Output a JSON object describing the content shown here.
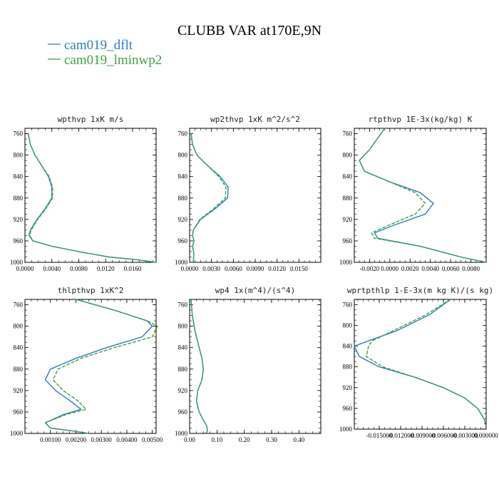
{
  "title": "CLUBB VAR at170E,9N",
  "legend": [
    {
      "name": "cam019_dflt",
      "color": "#2a7fc1",
      "dash": "solid"
    },
    {
      "name": "cam019_lminwp2",
      "color": "#3aa53a",
      "dash": "dashed"
    }
  ],
  "chart_data": [
    {
      "type": "line",
      "title": "wpthvp  1xK m/s",
      "xlim": [
        0,
        0.0195
      ],
      "ylim": [
        750,
        1000
      ],
      "y_inverted": true,
      "xticks": [
        "0.0000",
        "0.0040",
        "0.0080",
        "0.0120",
        "0.0160"
      ],
      "xtick_values": [
        0,
        0.004,
        0.008,
        0.012,
        0.016
      ],
      "yticks": [
        "760",
        "800",
        "840",
        "880",
        "920",
        "960",
        "1000"
      ],
      "ytick_values": [
        760,
        800,
        840,
        880,
        920,
        960,
        1000
      ],
      "series": [
        {
          "name": "cam019_dflt",
          "x": [
            0.0005,
            0.0008,
            0.0015,
            0.0025,
            0.0035,
            0.004,
            0.004,
            0.003,
            0.0018,
            0.0008,
            0.0006,
            0.0012,
            0.004,
            0.008,
            0.0125,
            0.0165,
            0.0195
          ],
          "y": [
            760,
            780,
            800,
            820,
            840,
            860,
            880,
            900,
            920,
            940,
            950,
            960,
            970,
            980,
            990,
            995,
            1000
          ]
        },
        {
          "name": "cam019_lminwp2",
          "x": [
            0.0005,
            0.0008,
            0.0015,
            0.0025,
            0.0036,
            0.0041,
            0.0041,
            0.0031,
            0.0019,
            0.0009,
            0.0007,
            0.0012,
            0.004,
            0.008,
            0.0125,
            0.0165,
            0.0195
          ],
          "y": [
            760,
            780,
            800,
            820,
            840,
            860,
            880,
            900,
            920,
            940,
            950,
            960,
            970,
            980,
            990,
            995,
            1000
          ]
        }
      ]
    },
    {
      "type": "line",
      "title": "wp2thvp  1xK m^2/s^2",
      "xlim": [
        0,
        0.018
      ],
      "ylim": [
        750,
        1000
      ],
      "y_inverted": true,
      "xticks": [
        "0.0000",
        "0.0030",
        "0.0060",
        "0.0090",
        "0.0120",
        "0.0150"
      ],
      "xtick_values": [
        0,
        0.003,
        0.006,
        0.009,
        0.012,
        0.015
      ],
      "yticks": [
        "760",
        "800",
        "840",
        "880",
        "920",
        "960",
        "1000"
      ],
      "ytick_values": [
        760,
        800,
        840,
        880,
        920,
        960,
        1000
      ],
      "series": [
        {
          "name": "cam019_dflt",
          "x": [
            0.0002,
            0.0004,
            0.001,
            0.0025,
            0.0042,
            0.0053,
            0.0052,
            0.0035,
            0.0015,
            0.0005,
            0.0004,
            0.0006,
            0.0004,
            0.0006,
            0.0005
          ],
          "y": [
            760,
            780,
            800,
            820,
            840,
            860,
            880,
            900,
            920,
            940,
            950,
            960,
            970,
            985,
            1000
          ]
        },
        {
          "name": "cam019_lminwp2",
          "x": [
            0.0002,
            0.0004,
            0.001,
            0.0025,
            0.004,
            0.005,
            0.0049,
            0.0033,
            0.0014,
            0.0005,
            0.0004,
            0.0006,
            0.0004,
            0.0006,
            0.0005
          ],
          "y": [
            760,
            780,
            800,
            820,
            840,
            860,
            880,
            900,
            920,
            940,
            950,
            960,
            970,
            985,
            1000
          ]
        }
      ]
    },
    {
      "type": "line",
      "title": "rtpthvp  1E-3x(kg/kg) K",
      "xlim": [
        -0.0035,
        0.0095
      ],
      "ylim": [
        750,
        1000
      ],
      "y_inverted": true,
      "xticks": [
        "-0.0020",
        "0.0000",
        "0.0020",
        "0.0040",
        "0.0060",
        "0.0080"
      ],
      "xtick_values": [
        -0.002,
        0,
        0.002,
        0.004,
        0.006,
        0.008
      ],
      "yticks": [
        "760",
        "800",
        "840",
        "880",
        "920",
        "960",
        "1000"
      ],
      "ytick_values": [
        760,
        800,
        840,
        880,
        920,
        960,
        1000
      ],
      "series": [
        {
          "name": "cam019_dflt",
          "x": [
            -0.0005,
            -0.002,
            -0.003,
            -0.0025,
            0.0,
            0.003,
            0.0043,
            0.0035,
            0.0005,
            -0.0015,
            -0.0012,
            0.003,
            0.007,
            0.0095
          ],
          "y": [
            750,
            790,
            810,
            830,
            850,
            870,
            890,
            910,
            930,
            945,
            955,
            970,
            990,
            1000
          ]
        },
        {
          "name": "cam019_lminwp2",
          "x": [
            -0.0005,
            -0.002,
            -0.003,
            -0.0025,
            0.0,
            0.0025,
            0.0035,
            0.0025,
            0.0,
            -0.0018,
            -0.0015,
            0.003,
            0.007,
            0.0095
          ],
          "y": [
            750,
            790,
            810,
            830,
            850,
            870,
            890,
            910,
            930,
            945,
            955,
            970,
            990,
            1000
          ]
        }
      ]
    },
    {
      "type": "line",
      "title": "thlpthvp  1xK^2",
      "xlim": [
        0,
        0.00515
      ],
      "ylim": [
        750,
        1000
      ],
      "y_inverted": true,
      "xticks": [
        "0.00100",
        "0.00200",
        "0.00300",
        "0.00400",
        "0.00500"
      ],
      "xtick_values": [
        0.001,
        0.002,
        0.003,
        0.004,
        0.005
      ],
      "yticks": [
        "760",
        "800",
        "840",
        "880",
        "920",
        "960",
        "1000"
      ],
      "ytick_values": [
        760,
        800,
        840,
        880,
        920,
        960,
        1000
      ],
      "series": [
        {
          "name": "cam019_dflt",
          "x": [
            0.002,
            0.0035,
            0.0048,
            0.005,
            0.0046,
            0.0032,
            0.002,
            0.001,
            0.0008,
            0.0012,
            0.0018,
            0.0022,
            0.0015,
            0.0008,
            0.001,
            0.0018,
            0.0025
          ],
          "y": [
            750,
            770,
            790,
            800,
            820,
            840,
            860,
            880,
            900,
            920,
            940,
            955,
            965,
            980,
            990,
            995,
            1000
          ]
        },
        {
          "name": "cam019_lminwp2",
          "x": [
            0.002,
            0.0035,
            0.0048,
            0.0052,
            0.005,
            0.0035,
            0.0022,
            0.0013,
            0.0011,
            0.0015,
            0.0021,
            0.0024,
            0.0016,
            0.0008,
            0.001,
            0.0018,
            0.0025
          ],
          "y": [
            750,
            770,
            790,
            800,
            820,
            840,
            860,
            880,
            900,
            920,
            940,
            955,
            965,
            980,
            990,
            995,
            1000
          ]
        }
      ]
    },
    {
      "type": "line",
      "title": "wp4  1x(m^4)/(s^4)",
      "xlim": [
        0,
        0.48
      ],
      "ylim": [
        750,
        1000
      ],
      "y_inverted": true,
      "xticks": [
        "0.00",
        "0.10",
        "0.20",
        "0.30",
        "0.40"
      ],
      "xtick_values": [
        0,
        0.1,
        0.2,
        0.3,
        0.4
      ],
      "yticks": [
        "760",
        "800",
        "840",
        "880",
        "920",
        "960",
        "1000"
      ],
      "ytick_values": [
        760,
        800,
        840,
        880,
        920,
        960,
        1000
      ],
      "series": [
        {
          "name": "cam019_dflt",
          "x": [
            0.005,
            0.01,
            0.02,
            0.035,
            0.045,
            0.05,
            0.045,
            0.03,
            0.025,
            0.035,
            0.05,
            0.062,
            0.065,
            0.06
          ],
          "y": [
            750,
            780,
            810,
            840,
            860,
            880,
            900,
            920,
            940,
            960,
            975,
            985,
            995,
            1000
          ]
        },
        {
          "name": "cam019_lminwp2",
          "x": [
            0.005,
            0.01,
            0.02,
            0.035,
            0.045,
            0.05,
            0.045,
            0.03,
            0.025,
            0.035,
            0.05,
            0.062,
            0.065,
            0.06
          ],
          "y": [
            750,
            780,
            810,
            840,
            860,
            880,
            900,
            920,
            940,
            960,
            975,
            985,
            995,
            1000
          ]
        }
      ]
    },
    {
      "type": "line",
      "title": "wprtpthlp  1-E-3x(m kg K)/(s kg)",
      "xlim": [
        -0.0185,
        0.0
      ],
      "ylim": [
        750,
        1000
      ],
      "y_inverted": true,
      "xticks": [
        "-0.015000",
        "-0.012000",
        "-0.009000",
        "-0.006000",
        "-0.003000",
        "0.000000"
      ],
      "xtick_values": [
        -0.015,
        -0.012,
        -0.009,
        -0.006,
        -0.003,
        0.0
      ],
      "yticks": [
        "760",
        "800",
        "840",
        "880",
        "920",
        "960",
        "1000"
      ],
      "ytick_values": [
        760,
        800,
        840,
        880,
        920,
        960,
        1000
      ],
      "series": [
        {
          "name": "cam019_dflt",
          "x": [
            -0.005,
            -0.008,
            -0.0125,
            -0.0165,
            -0.0185,
            -0.0178,
            -0.015,
            -0.01,
            -0.006,
            -0.003,
            -0.0012,
            -0.0003,
            0.0
          ],
          "y": [
            750,
            780,
            810,
            830,
            840,
            860,
            880,
            900,
            920,
            940,
            960,
            980,
            995
          ]
        },
        {
          "name": "cam019_lminwp2",
          "x": [
            -0.005,
            -0.0085,
            -0.013,
            -0.016,
            -0.0165,
            -0.0168,
            -0.0145,
            -0.01,
            -0.006,
            -0.003,
            -0.0012,
            -0.0003,
            0.0
          ],
          "y": [
            750,
            780,
            810,
            830,
            840,
            860,
            880,
            900,
            920,
            940,
            960,
            980,
            995
          ]
        }
      ]
    }
  ]
}
